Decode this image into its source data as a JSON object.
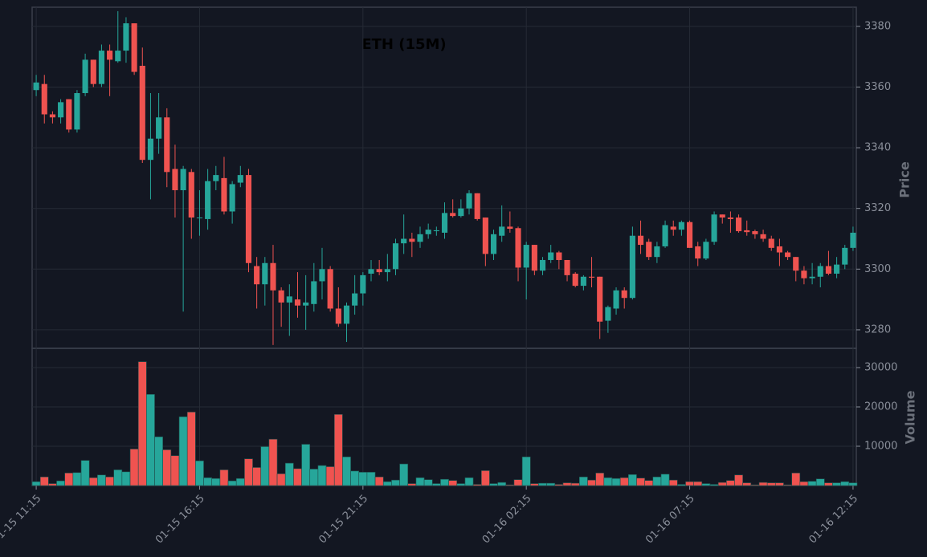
{
  "chart_data": {
    "type": "candlestick",
    "title": "ETH (15M)",
    "ylabel": "Price",
    "volume_label": "Volume",
    "up_color": "#26a69a",
    "down_color": "#ef5350",
    "grid": true,
    "open": [
      3359,
      3361,
      3351,
      3350,
      3356,
      3346,
      3358,
      3369,
      3361,
      3372,
      3368.5,
      3372,
      3381,
      3367,
      3336,
      3343,
      3350,
      3333,
      3326,
      3332,
      3317,
      3316.5,
      3329,
      3330,
      3319,
      3328.5,
      3331,
      3301,
      3295,
      3302,
      3293,
      3289,
      3290,
      3288,
      3288.5,
      3296,
      3300,
      3287,
      3282,
      3288,
      3292,
      3298.5,
      3300,
      3299,
      3300,
      3308.5,
      3310,
      3309,
      3311.5,
      3312.5,
      3312,
      3318.5,
      3317.5,
      3320,
      3325,
      3317,
      3305,
      3311,
      3314,
      3313.5,
      3300.5,
      3308,
      3299.5,
      3303,
      3305.5,
      3303,
      3298.5,
      3294.5,
      3297.5,
      3297.5,
      3283,
      3287,
      3293,
      3290.5,
      3311,
      3309,
      3304,
      3307.5,
      3314,
      3313,
      3315.5,
      3307.5,
      3303.5,
      3309,
      3318,
      3317,
      3317,
      3312.8,
      3312.5,
      3311.5,
      3310,
      3307.5,
      3305.5,
      3304,
      3299.5,
      3297,
      3297.5,
      3301,
      3298.5,
      3301.5,
      3307
    ],
    "high": [
      3364,
      3364,
      3352,
      3356,
      3356,
      3359,
      3371,
      3369,
      3374,
      3374,
      3385,
      3383,
      3381,
      3373,
      3358,
      3358,
      3353,
      3341,
      3334,
      3333,
      3326,
      3333,
      3334,
      3337,
      3329,
      3334,
      3333,
      3304,
      3304,
      3308,
      3294,
      3295,
      3299,
      3298,
      3302,
      3307,
      3301,
      3294,
      3289,
      3298,
      3299,
      3303,
      3303,
      3305,
      3310,
      3318,
      3312,
      3314,
      3315,
      3314,
      3322,
      3323,
      3323,
      3326,
      3325,
      3317,
      3313,
      3321,
      3319,
      3314,
      3309,
      3308,
      3304,
      3308,
      3306,
      3303,
      3299,
      3298,
      3304,
      3297.5,
      3288,
      3294,
      3294,
      3314,
      3316,
      3310,
      3309,
      3316,
      3316,
      3316,
      3316,
      3309,
      3310,
      3319,
      3318,
      3319,
      3318,
      3316,
      3313,
      3313,
      3311,
      3310,
      3306,
      3304,
      3301,
      3302,
      3302,
      3306,
      3304,
      3308,
      3314
    ],
    "low": [
      3357,
      3348,
      3348,
      3348,
      3345,
      3345,
      3357,
      3360,
      3360,
      3357,
      3368,
      3368,
      3364,
      3335,
      3323,
      3338,
      3327,
      3317,
      3286,
      3310,
      3311,
      3313,
      3326,
      3318,
      3315,
      3327,
      3299,
      3287,
      3288,
      3275,
      3281,
      3278,
      3284,
      3280,
      3286,
      3290,
      3286,
      3281,
      3276,
      3285,
      3288,
      3296,
      3298,
      3296,
      3298,
      3305,
      3304,
      3307,
      3310,
      3311,
      3310,
      3317,
      3317,
      3318,
      3316,
      3301,
      3303,
      3309,
      3312,
      3296,
      3290,
      3298,
      3298,
      3302,
      3300,
      3296,
      3294,
      3293,
      3294,
      3277,
      3279,
      3285,
      3287,
      3290,
      3305,
      3303,
      3302,
      3307,
      3311,
      3311,
      3307,
      3301,
      3303,
      3308,
      3315,
      3312,
      3312,
      3311,
      3310,
      3309,
      3306,
      3301,
      3303,
      3296,
      3295,
      3295,
      3294,
      3298,
      3297,
      3300,
      3306
    ],
    "close": [
      3361.5,
      3351,
      3350,
      3355,
      3346,
      3358,
      3369,
      3361,
      3372,
      3369,
      3372,
      3381,
      3365,
      3336,
      3343,
      3350,
      3332,
      3326,
      3333,
      3317,
      3317,
      3329,
      3331,
      3319,
      3328,
      3331,
      3302,
      3295,
      3302,
      3293,
      3289,
      3291,
      3288,
      3289,
      3296,
      3300,
      3287,
      3282,
      3288,
      3292,
      3298,
      3300,
      3299,
      3300,
      3308.5,
      3310,
      3309,
      3311.5,
      3313,
      3312.8,
      3318.5,
      3317.5,
      3320,
      3325,
      3316.5,
      3305,
      3311.5,
      3314,
      3313.3,
      3300.5,
      3308,
      3299.5,
      3303,
      3305.5,
      3303,
      3298,
      3294.5,
      3297.5,
      3297.2,
      3282.7,
      3287.5,
      3293,
      3290.5,
      3311,
      3308,
      3304,
      3307.5,
      3314.5,
      3313,
      3315.5,
      3307,
      3303.5,
      3309,
      3318,
      3317,
      3316.5,
      3312.5,
      3312.2,
      3311.5,
      3310,
      3307,
      3305.5,
      3304,
      3299.5,
      3297,
      3297.5,
      3301,
      3298.5,
      3301.5,
      3307,
      3312
    ],
    "volume": [
      1000,
      2200,
      500,
      1200,
      3200,
      3300,
      6400,
      2000,
      2700,
      2200,
      4000,
      3500,
      9300,
      31500,
      23200,
      12400,
      9100,
      7600,
      17500,
      18700,
      6300,
      2000,
      1800,
      4000,
      1200,
      1800,
      6800,
      4600,
      9900,
      11800,
      3000,
      5700,
      4300,
      10500,
      4200,
      5100,
      4800,
      18100,
      7300,
      3700,
      3400,
      3400,
      2200,
      1000,
      1400,
      5500,
      500,
      2000,
      1500,
      500,
      1600,
      1300,
      500,
      2000,
      300,
      3800,
      500,
      800,
      200,
      1500,
      7300,
      500,
      600,
      600,
      300,
      700,
      600,
      2200,
      1400,
      3200,
      2000,
      1800,
      2000,
      2800,
      1900,
      1300,
      2200,
      2900,
      1400,
      300,
      1000,
      1000,
      500,
      300,
      800,
      1300,
      2700,
      700,
      200,
      800,
      700,
      700,
      200,
      3200,
      1000,
      1100,
      1700,
      700,
      700,
      1000,
      700
    ],
    "xlim": [
      -0.5,
      100.4
    ],
    "xticks": [
      {
        "value": 0,
        "label": "01-15 11:15"
      },
      {
        "value": 20,
        "label": "01-15 16:15"
      },
      {
        "value": 40,
        "label": "01-15 21:15"
      },
      {
        "value": 60,
        "label": "01-16 02:15"
      },
      {
        "value": 80,
        "label": "01-16 07:15"
      },
      {
        "value": 100,
        "label": "01-16 12:15"
      }
    ],
    "ylim": [
      3273.9,
      3386.3
    ],
    "yticks": [
      3280,
      3300,
      3320,
      3340,
      3360,
      3380
    ],
    "volume_ylim": [
      0,
      34900
    ],
    "volume_yticks": [
      10000,
      20000,
      30000
    ]
  }
}
